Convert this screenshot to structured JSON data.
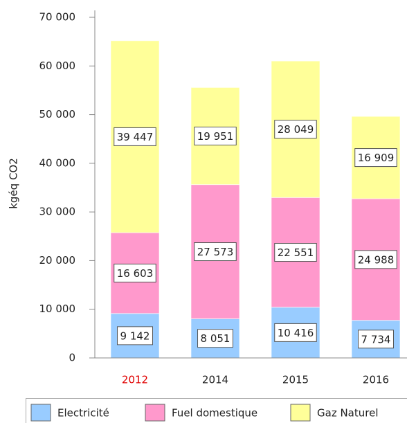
{
  "chart_data": {
    "type": "stacked_bar",
    "y_label": "kgéq CO2",
    "categories": [
      "2012",
      "2014",
      "2015",
      "2016"
    ],
    "series": [
      {
        "name": "Electricité",
        "color": "#99ccff",
        "values": [
          9142,
          8051,
          10416,
          7734
        ],
        "value_labels": [
          "9 142",
          "8 051",
          "10 416",
          "7 734"
        ]
      },
      {
        "name": "Fuel domestique",
        "color": "#ff99cc",
        "values": [
          16603,
          27573,
          22551,
          24988
        ],
        "value_labels": [
          "16 603",
          "27 573",
          "22 551",
          "24 988"
        ]
      },
      {
        "name": "Gaz Naturel",
        "color": "#ffff99",
        "values": [
          39447,
          19951,
          28049,
          16909
        ],
        "value_labels": [
          "39 447",
          "19 951",
          "28 049",
          "16 909"
        ]
      }
    ],
    "ylim": [
      0,
      70000
    ],
    "yticks": [
      0,
      {
        "value": 10000,
        "label": "10 000"
      },
      {
        "value": 20000,
        "label": "20 000"
      },
      {
        "value": 30000,
        "label": "30 000"
      },
      {
        "value": 40000,
        "label": "40 000"
      },
      {
        "value": 50000,
        "label": "50 000"
      },
      {
        "value": 60000,
        "label": "60 000"
      },
      {
        "value": 70000,
        "label": "70 000"
      }
    ],
    "grid": false,
    "legend": "bottom"
  }
}
